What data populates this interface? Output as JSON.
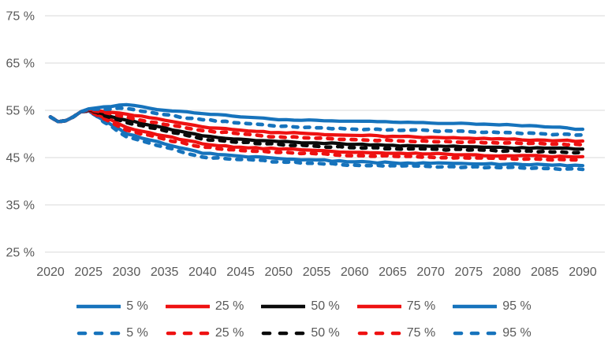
{
  "chart_data": {
    "type": "line",
    "title": "",
    "xlabel": "",
    "ylabel": "",
    "x_axis": {
      "ticks": [
        2020,
        2025,
        2030,
        2035,
        2040,
        2045,
        2050,
        2055,
        2060,
        2065,
        2070,
        2075,
        2080,
        2085,
        2090
      ],
      "tick_labels": [
        "2020",
        "2025",
        "2030",
        "2035",
        "2040",
        "2045",
        "2050",
        "2055",
        "2060",
        "2065",
        "2070",
        "2075",
        "2080",
        "2085",
        "2090"
      ],
      "range": [
        2020,
        2090
      ]
    },
    "y_axis": {
      "ticks": [
        75,
        65,
        55,
        45,
        35,
        25
      ],
      "tick_labels": [
        "75 %",
        "65 %",
        "55 %",
        "45 %",
        "35 %",
        "25 %"
      ],
      "range": [
        25,
        75
      ],
      "grid": true
    },
    "colors": {
      "blue": "#1673bc",
      "red": "#ee1111",
      "black": "#0a0a0a",
      "grid": "#d9d9d9",
      "tick_text": "#595959",
      "legend_text": "#595959"
    },
    "x_years": [
      2020,
      2021,
      2022,
      2023,
      2024,
      2025,
      2030,
      2035,
      2040,
      2045,
      2050,
      2055,
      2060,
      2065,
      2070,
      2075,
      2080,
      2085,
      2090
    ],
    "series": [
      {
        "name": "5 %",
        "style": "solid",
        "color_key": "blue",
        "values": [
          53.6,
          52.6,
          52.8,
          53.6,
          54.7,
          54.9,
          50.0,
          47.9,
          45.9,
          45.3,
          44.8,
          44.5,
          44.1,
          43.9,
          43.8,
          43.7,
          43.6,
          43.5,
          43.3
        ]
      },
      {
        "name": "25 %",
        "style": "solid",
        "color_key": "red",
        "values": [
          53.6,
          52.6,
          52.8,
          53.6,
          54.7,
          55.0,
          51.4,
          49.6,
          47.9,
          47.2,
          46.8,
          46.5,
          46.1,
          45.9,
          45.8,
          45.6,
          45.4,
          45.3,
          45.2
        ]
      },
      {
        "name": "50 %",
        "style": "solid",
        "color_key": "black",
        "values": [
          53.6,
          52.6,
          52.8,
          53.6,
          54.7,
          55.1,
          52.9,
          51.3,
          49.6,
          48.9,
          48.4,
          48.1,
          47.8,
          47.6,
          47.4,
          47.3,
          47.1,
          47.0,
          46.8
        ]
      },
      {
        "name": "75 %",
        "style": "solid",
        "color_key": "red",
        "values": [
          53.6,
          52.6,
          52.8,
          53.6,
          54.7,
          55.2,
          54.2,
          52.9,
          51.5,
          50.8,
          50.3,
          50.0,
          49.7,
          49.5,
          49.3,
          49.1,
          48.9,
          48.7,
          48.5
        ]
      },
      {
        "name": "95 %",
        "style": "solid",
        "color_key": "blue",
        "values": [
          53.6,
          52.6,
          52.8,
          53.6,
          54.7,
          55.3,
          56.2,
          55.0,
          54.3,
          53.6,
          53.0,
          52.9,
          52.7,
          52.5,
          52.3,
          52.2,
          52.0,
          51.5,
          51.0
        ]
      },
      {
        "name": "5 %",
        "style": "dashed",
        "color_key": "blue",
        "values": [
          53.6,
          52.6,
          52.8,
          53.6,
          54.7,
          54.8,
          49.4,
          47.2,
          45.1,
          44.6,
          44.1,
          43.8,
          43.4,
          43.3,
          43.1,
          43.0,
          42.9,
          42.7,
          42.5
        ]
      },
      {
        "name": "25 %",
        "style": "dashed",
        "color_key": "red",
        "values": [
          53.6,
          52.6,
          52.8,
          53.6,
          54.7,
          54.9,
          50.8,
          48.9,
          47.2,
          46.5,
          46.1,
          45.8,
          45.4,
          45.3,
          45.1,
          44.9,
          44.8,
          44.6,
          44.5
        ]
      },
      {
        "name": "50 %",
        "style": "dashed",
        "color_key": "black",
        "values": [
          53.6,
          52.6,
          52.8,
          53.6,
          54.7,
          55.0,
          52.4,
          50.7,
          48.9,
          48.2,
          47.8,
          47.4,
          47.1,
          46.9,
          46.8,
          46.6,
          46.4,
          46.3,
          46.1
        ]
      },
      {
        "name": "75 %",
        "style": "dashed",
        "color_key": "red",
        "values": [
          53.6,
          52.6,
          52.8,
          53.6,
          54.7,
          55.1,
          53.6,
          52.0,
          50.7,
          50.0,
          49.4,
          49.1,
          48.8,
          48.6,
          48.4,
          48.3,
          48.1,
          47.9,
          47.7
        ]
      },
      {
        "name": "95 %",
        "style": "dashed",
        "color_key": "blue",
        "values": [
          53.6,
          52.6,
          52.8,
          53.6,
          54.7,
          55.2,
          55.4,
          54.1,
          53.0,
          52.3,
          51.6,
          51.3,
          51.0,
          50.9,
          50.7,
          50.5,
          50.3,
          50.0,
          49.8
        ]
      }
    ],
    "legend": {
      "position": "bottom",
      "rows": [
        {
          "style": "solid",
          "items": [
            {
              "label": "5 %",
              "color_key": "blue"
            },
            {
              "label": "25 %",
              "color_key": "red"
            },
            {
              "label": "50 %",
              "color_key": "black"
            },
            {
              "label": "75 %",
              "color_key": "red"
            },
            {
              "label": "95 %",
              "color_key": "blue"
            }
          ]
        },
        {
          "style": "dashed",
          "items": [
            {
              "label": "5 %",
              "color_key": "blue"
            },
            {
              "label": "25 %",
              "color_key": "red"
            },
            {
              "label": "50 %",
              "color_key": "black"
            },
            {
              "label": "75 %",
              "color_key": "red"
            },
            {
              "label": "95 %",
              "color_key": "blue"
            }
          ]
        }
      ]
    }
  }
}
